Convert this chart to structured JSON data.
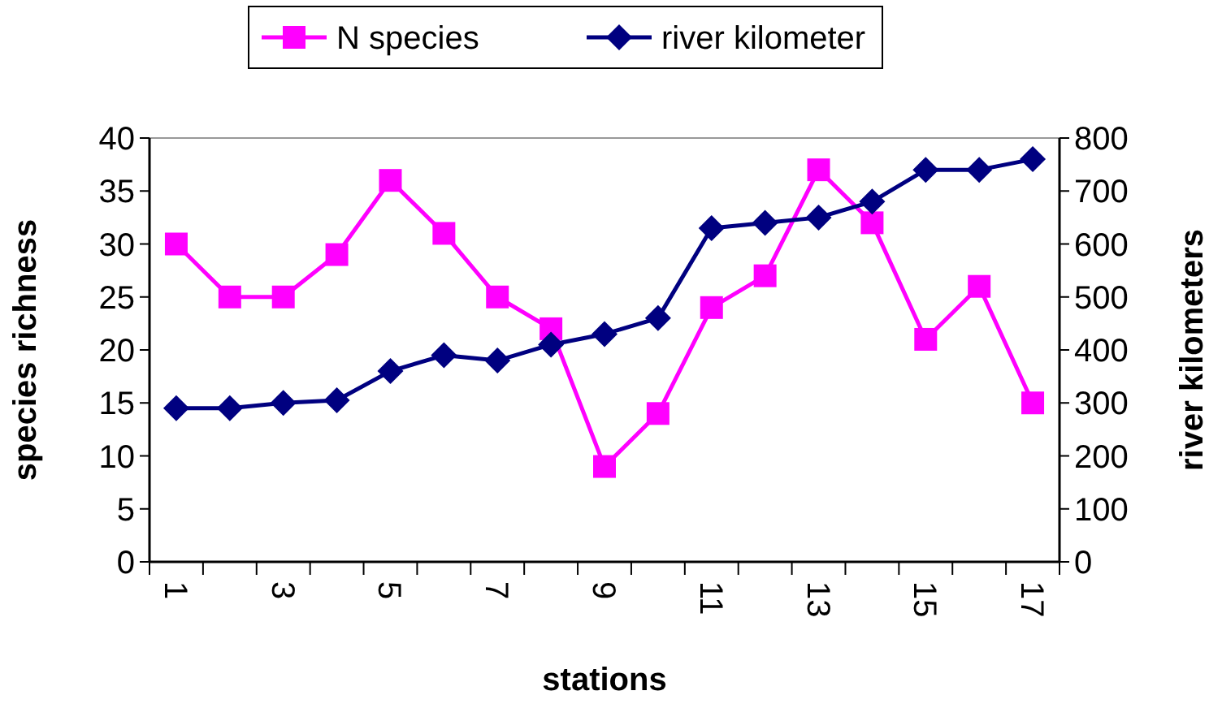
{
  "chart_data": {
    "type": "line",
    "xlabel": "stations",
    "ylabel": "species richness",
    "y2label": "river kilometers",
    "categories": [
      "1",
      null,
      "3",
      null,
      "5",
      null,
      "7",
      null,
      "9",
      null,
      "11",
      null,
      "13",
      null,
      "15",
      null,
      "17"
    ],
    "series": [
      {
        "name": "N species",
        "color": "#ff00ff",
        "marker": "square",
        "values": [
          30,
          25,
          25,
          29,
          36,
          31,
          25,
          22,
          9,
          14,
          24,
          27,
          37,
          32,
          21,
          26,
          15
        ]
      },
      {
        "name": "river kilometer",
        "color": "#000080",
        "marker": "diamond",
        "axis": "y2",
        "values": [
          290,
          290,
          300,
          305,
          360,
          390,
          380,
          410,
          430,
          460,
          630,
          640,
          650,
          680,
          740,
          740,
          760
        ]
      }
    ],
    "ylim": [
      0,
      40
    ],
    "yticks": [
      0,
      5,
      10,
      15,
      20,
      25,
      30,
      35,
      40
    ],
    "y2lim": [
      0,
      800
    ],
    "y2ticks": [
      0,
      100,
      200,
      300,
      400,
      500,
      600,
      700,
      800
    ],
    "legend": "top",
    "grid": false
  }
}
